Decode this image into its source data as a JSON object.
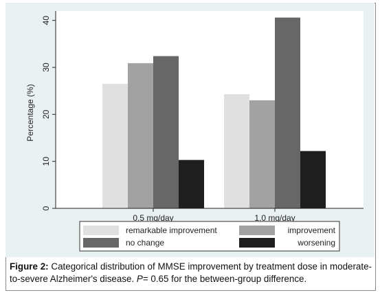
{
  "chart_data": {
    "type": "bar",
    "ylabel": "Percentage (%)",
    "xlabel": "",
    "ylim": [
      0,
      42
    ],
    "yticks": [
      0,
      10,
      20,
      30,
      40
    ],
    "categories": [
      "0.5 mg/day",
      "1.0 mg/day"
    ],
    "series": [
      {
        "name": "remarkable improvement",
        "color": "#e0e0e0",
        "values": [
          26.5,
          24.3
        ]
      },
      {
        "name": "improvement",
        "color": "#a2a2a2",
        "values": [
          30.9,
          23.0
        ]
      },
      {
        "name": "no change",
        "color": "#676767",
        "values": [
          32.4,
          40.6
        ]
      },
      {
        "name": "worsening",
        "color": "#1e1e1e",
        "values": [
          10.3,
          12.2
        ]
      }
    ],
    "legend_position": "bottom",
    "plot_background": "#ffffff",
    "outer_background": "#eaf1f3",
    "grid": false
  },
  "caption": {
    "label": "Figure 2:",
    "text_part1": " Categorical distribution of MMSE improvement by treatment dose in moderate-to-severe Alzheimer's disease. ",
    "p_symbol": "P",
    "text_part2": "= 0.65 for the between-group difference."
  }
}
